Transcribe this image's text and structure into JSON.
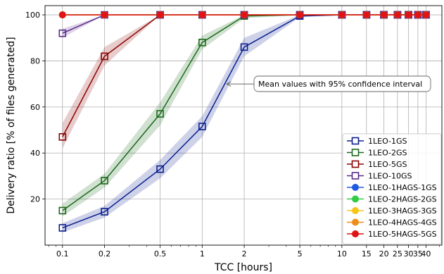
{
  "chart_data": {
    "type": "line",
    "title": "",
    "xlabel": "TCC [hours]",
    "ylabel": "Delivery ratio [% of files generated]",
    "x_scale": "log",
    "xlim": [
      0.075,
      52
    ],
    "ylim": [
      0,
      104
    ],
    "grid": true,
    "legend_position": "lower-right",
    "x_ticks": [
      {
        "value": 0.1,
        "label": "0.1"
      },
      {
        "value": 0.2,
        "label": "0.2"
      },
      {
        "value": 0.5,
        "label": "0.5"
      },
      {
        "value": 1,
        "label": "1"
      },
      {
        "value": 2,
        "label": "2"
      },
      {
        "value": 5,
        "label": "5"
      },
      {
        "value": 10,
        "label": "10"
      },
      {
        "value": 15,
        "label": "15"
      },
      {
        "value": 20,
        "label": "20"
      },
      {
        "value": 25,
        "label": "25"
      },
      {
        "value": 30,
        "label": "30"
      },
      {
        "value": 35,
        "label": "35"
      },
      {
        "value": 40,
        "label": "40"
      }
    ],
    "y_ticks": [
      20,
      40,
      60,
      80,
      100
    ],
    "x": [
      0.1,
      0.2,
      0.5,
      1,
      2,
      5,
      10,
      15,
      20,
      25,
      30,
      35,
      40
    ],
    "annotation": {
      "text": "Mean values with 95% confidence interval",
      "points_to_x": 1.5,
      "points_to_y": 70
    },
    "series": [
      {
        "name": "1LEO-1GS",
        "color": "#0a1f8f",
        "marker": "square-open",
        "values": [
          7.5,
          14.5,
          33,
          51.5,
          86,
          99.5,
          100,
          100,
          100,
          100,
          100,
          100,
          100
        ],
        "ci_low": [
          5.5,
          12,
          29,
          47,
          82,
          99,
          100,
          100,
          100,
          100,
          100,
          100,
          100
        ],
        "ci_high": [
          9.5,
          17,
          37,
          56,
          90,
          100,
          100,
          100,
          100,
          100,
          100,
          100,
          100
        ]
      },
      {
        "name": "1LEO-2GS",
        "color": "#1b6b1b",
        "marker": "square-open",
        "values": [
          15,
          28,
          57,
          88,
          99.5,
          100,
          100,
          100,
          100,
          100,
          100,
          100,
          100
        ],
        "ci_low": [
          12.5,
          25,
          52,
          85,
          98.5,
          100,
          100,
          100,
          100,
          100,
          100,
          100,
          100
        ],
        "ci_high": [
          18,
          31,
          62,
          91,
          100,
          100,
          100,
          100,
          100,
          100,
          100,
          100,
          100
        ]
      },
      {
        "name": "1LEO-5GS",
        "color": "#8b0000",
        "marker": "square-open",
        "values": [
          47,
          82,
          100,
          100,
          100,
          100,
          100,
          100,
          100,
          100,
          100,
          100,
          100
        ],
        "ci_low": [
          42,
          78,
          100,
          100,
          100,
          100,
          100,
          100,
          100,
          100,
          100,
          100,
          100
        ],
        "ci_high": [
          53,
          86,
          100,
          100,
          100,
          100,
          100,
          100,
          100,
          100,
          100,
          100,
          100
        ]
      },
      {
        "name": "1LEO-10GS",
        "color": "#5a2a8a",
        "marker": "square-open",
        "values": [
          92,
          100,
          100,
          100,
          100,
          100,
          100,
          100,
          100,
          100,
          100,
          100,
          100
        ],
        "ci_low": [
          90,
          100,
          100,
          100,
          100,
          100,
          100,
          100,
          100,
          100,
          100,
          100,
          100
        ],
        "ci_high": [
          94,
          100,
          100,
          100,
          100,
          100,
          100,
          100,
          100,
          100,
          100,
          100,
          100
        ]
      },
      {
        "name": "1LEO-1HAGS-1GS",
        "color": "#1f5ae0",
        "marker": "circle",
        "values": [
          100,
          100,
          100,
          100,
          100,
          100,
          100,
          100,
          100,
          100,
          100,
          100,
          100
        ]
      },
      {
        "name": "1LEO-2HAGS-2GS",
        "color": "#33cc44",
        "marker": "circle",
        "values": [
          100,
          100,
          100,
          100,
          100,
          100,
          100,
          100,
          100,
          100,
          100,
          100,
          100
        ]
      },
      {
        "name": "1LEO-3HAGS-3GS",
        "color": "#f5c518",
        "marker": "circle",
        "values": [
          100,
          100,
          100,
          100,
          100,
          100,
          100,
          100,
          100,
          100,
          100,
          100,
          100
        ]
      },
      {
        "name": "1LEO-4HAGS-4GS",
        "color": "#f08c1c",
        "marker": "circle",
        "values": [
          100,
          100,
          100,
          100,
          100,
          100,
          100,
          100,
          100,
          100,
          100,
          100,
          100
        ]
      },
      {
        "name": "1LEO-5HAGS-5GS",
        "color": "#e01414",
        "marker": "circle",
        "values": [
          100,
          100,
          100,
          100,
          100,
          100,
          100,
          100,
          100,
          100,
          100,
          100,
          100
        ]
      }
    ]
  }
}
